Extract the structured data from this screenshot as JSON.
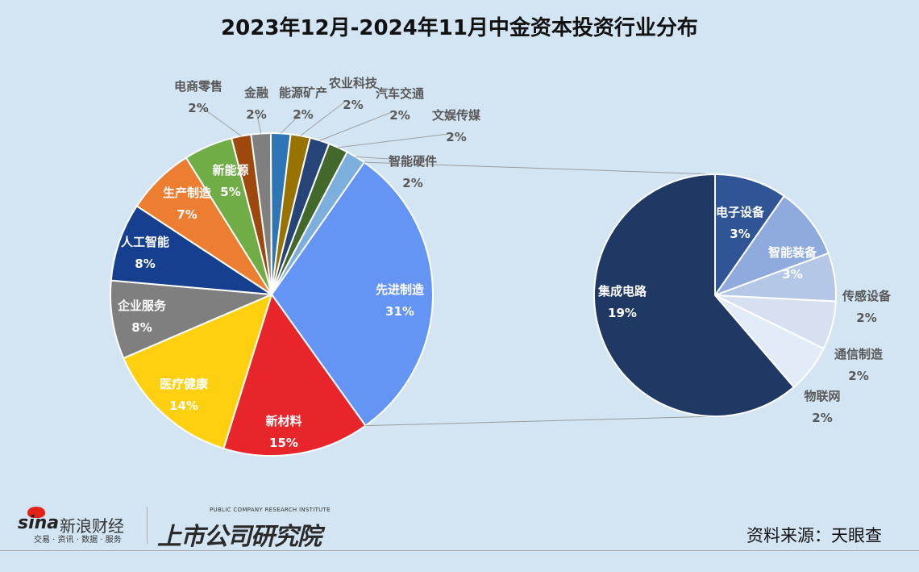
{
  "chart_data": {
    "type": "pie",
    "subtype": "pie-of-pie",
    "title": "2023年12月-2024年11月中金资本投资行业分布",
    "main_pie": [
      {
        "label": "先进制造",
        "value": 31,
        "pct": "31%",
        "color": "#6495f5",
        "expanded": true
      },
      {
        "label": "新材料",
        "value": 15,
        "pct": "15%",
        "color": "#e8252a"
      },
      {
        "label": "医疗健康",
        "value": 14,
        "pct": "14%",
        "color": "#ffd00f"
      },
      {
        "label": "企业服务",
        "value": 8,
        "pct": "8%",
        "color": "#7f7f7f"
      },
      {
        "label": "人工智能",
        "value": 8,
        "pct": "8%",
        "color": "#163f90"
      },
      {
        "label": "生产制造",
        "value": 7,
        "pct": "7%",
        "color": "#ed7d31"
      },
      {
        "label": "新能源",
        "value": 5,
        "pct": "5%",
        "color": "#70ad47"
      },
      {
        "label": "电商零售",
        "value": 2,
        "pct": "2%",
        "color": "#9e480e"
      },
      {
        "label": "金融",
        "value": 2,
        "pct": "2%",
        "color": "#7f7f7f"
      },
      {
        "label": "能源矿产",
        "value": 2,
        "pct": "2%",
        "color": "#2e75b6"
      },
      {
        "label": "农业科技",
        "value": 2,
        "pct": "2%",
        "color": "#997300"
      },
      {
        "label": "汽车交通",
        "value": 2,
        "pct": "2%",
        "color": "#264478"
      },
      {
        "label": "文娱传媒",
        "value": 2,
        "pct": "2%",
        "color": "#43682b"
      },
      {
        "label": "智能硬件",
        "value": 2,
        "pct": "2%",
        "color": "#7cafdd"
      }
    ],
    "secondary_pie": [
      {
        "label": "电子设备",
        "value": 3,
        "pct": "3%",
        "color": "#2f5597"
      },
      {
        "label": "智能装备",
        "value": 3,
        "pct": "3%",
        "color": "#8faadc"
      },
      {
        "label": "传感设备",
        "value": 2,
        "pct": "2%",
        "color": "#b4c7e7"
      },
      {
        "label": "通信制造",
        "value": 2,
        "pct": "2%",
        "color": "#d6e0f0"
      },
      {
        "label": "物联网",
        "value": 2,
        "pct": "2%",
        "color": "#e2ecf8"
      },
      {
        "label": "集成电路",
        "value": 19,
        "pct": "19%",
        "color": "#1f3864"
      }
    ]
  },
  "footer": {
    "source": "资料来源：天眼查",
    "sina_word": "sina",
    "sina_cn": "新浪财经",
    "sina_sub": "交易 · 资讯 · 数据 · 服务",
    "institute_en": "PUBLIC COMPANY RESEARCH INSTITUTE",
    "institute_cn": "上市公司研究院"
  }
}
